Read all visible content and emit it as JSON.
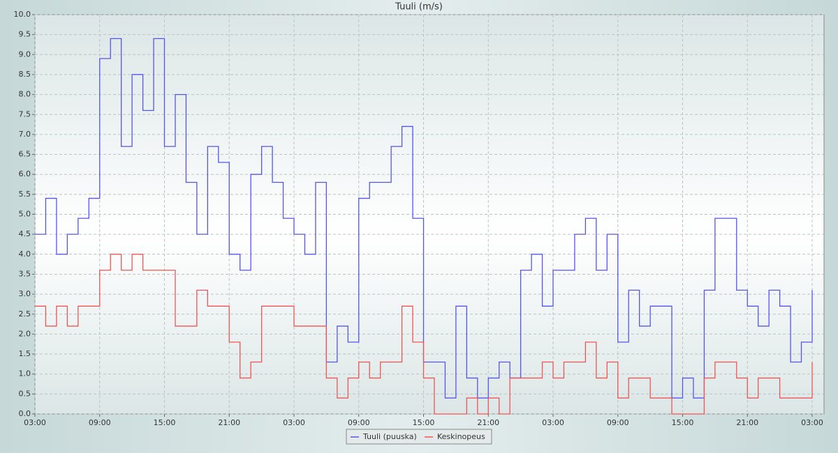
{
  "chart_data": {
    "type": "line",
    "title": "Tuuli (m/s)",
    "step": true,
    "grid": true,
    "legend": "bottom",
    "x": [
      0,
      1,
      2,
      3,
      4,
      5,
      6,
      7,
      8,
      9,
      10,
      11,
      12,
      13,
      14,
      15,
      16,
      17,
      18,
      19,
      20,
      21,
      22,
      23,
      24,
      25,
      26,
      27,
      28,
      29,
      30,
      31,
      32,
      33,
      34,
      35,
      36,
      37,
      38,
      39,
      40,
      41,
      42,
      43,
      44,
      45,
      46,
      47,
      48,
      49,
      50,
      51,
      52,
      53,
      54,
      55,
      56,
      57,
      58,
      59,
      60,
      61,
      62,
      63,
      64,
      65,
      66,
      67,
      68,
      69,
      70,
      71,
      72
    ],
    "series": [
      {
        "name": "Tuuli (puuska)",
        "color": "#5555ee",
        "values": [
          4.5,
          5.4,
          4.0,
          4.5,
          4.9,
          5.4,
          8.9,
          9.4,
          6.7,
          8.5,
          7.6,
          9.4,
          6.7,
          8.0,
          5.8,
          4.5,
          6.7,
          6.3,
          4.0,
          3.6,
          6.0,
          6.7,
          5.8,
          4.9,
          4.5,
          4.0,
          5.8,
          1.3,
          2.2,
          1.8,
          5.4,
          5.8,
          5.8,
          6.7,
          7.2,
          4.9,
          1.3,
          1.3,
          0.4,
          2.7,
          0.9,
          0.4,
          0.9,
          1.3,
          0.9,
          3.6,
          4.0,
          2.7,
          3.6,
          3.6,
          4.5,
          4.9,
          3.6,
          4.5,
          1.8,
          3.1,
          2.2,
          2.7,
          2.7,
          0.4,
          0.9,
          0.4,
          3.1,
          4.9,
          4.9,
          3.1,
          2.7,
          2.2,
          3.1,
          2.7,
          1.3,
          1.8,
          3.1
        ]
      },
      {
        "name": "Keskinopeus",
        "color": "#ee5555",
        "values": [
          2.7,
          2.2,
          2.7,
          2.2,
          2.7,
          2.7,
          3.6,
          4.0,
          3.6,
          4.0,
          3.6,
          3.6,
          3.6,
          2.2,
          2.2,
          3.1,
          2.7,
          2.7,
          1.8,
          0.9,
          1.3,
          2.7,
          2.7,
          2.7,
          2.2,
          2.2,
          2.2,
          0.9,
          0.4,
          0.9,
          1.3,
          0.9,
          1.3,
          1.3,
          2.7,
          1.8,
          0.9,
          0.0,
          0.0,
          0.0,
          0.4,
          0.0,
          0.4,
          0.0,
          0.9,
          0.9,
          0.9,
          1.3,
          0.9,
          1.3,
          1.3,
          1.8,
          0.9,
          1.3,
          0.4,
          0.9,
          0.9,
          0.4,
          0.4,
          0.0,
          0.0,
          0.0,
          0.9,
          1.3,
          1.3,
          0.9,
          0.4,
          0.9,
          0.9,
          0.4,
          0.4,
          0.4,
          1.3
        ]
      }
    ],
    "xlim": [
      0,
      73.1
    ],
    "xticks": [
      {
        "value": 0,
        "label": "03:00"
      },
      {
        "value": 6,
        "label": "09:00"
      },
      {
        "value": 12,
        "label": "15:00"
      },
      {
        "value": 18,
        "label": "21:00"
      },
      {
        "value": 24,
        "label": "03:00"
      },
      {
        "value": 30,
        "label": "09:00"
      },
      {
        "value": 36,
        "label": "15:00"
      },
      {
        "value": 42,
        "label": "21:00"
      },
      {
        "value": 48,
        "label": "03:00"
      },
      {
        "value": 54,
        "label": "09:00"
      },
      {
        "value": 60,
        "label": "15:00"
      },
      {
        "value": 66,
        "label": "21:00"
      },
      {
        "value": 72,
        "label": "03:00"
      }
    ],
    "ylim": [
      0,
      10
    ],
    "yticks": [
      {
        "value": 0,
        "label": "0.0"
      },
      {
        "value": 0.5,
        "label": "0.5"
      },
      {
        "value": 1,
        "label": "1.0"
      },
      {
        "value": 1.5,
        "label": "1.5"
      },
      {
        "value": 2,
        "label": "2.0"
      },
      {
        "value": 2.5,
        "label": "2.5"
      },
      {
        "value": 3,
        "label": "3.0"
      },
      {
        "value": 3.5,
        "label": "3.5"
      },
      {
        "value": 4,
        "label": "4.0"
      },
      {
        "value": 4.5,
        "label": "4.5"
      },
      {
        "value": 5,
        "label": "5.0"
      },
      {
        "value": 5.5,
        "label": "5.5"
      },
      {
        "value": 6,
        "label": "6.0"
      },
      {
        "value": 6.5,
        "label": "6.5"
      },
      {
        "value": 7,
        "label": "7.0"
      },
      {
        "value": 7.5,
        "label": "7.5"
      },
      {
        "value": 8,
        "label": "8.0"
      },
      {
        "value": 8.5,
        "label": "8.5"
      },
      {
        "value": 9,
        "label": "9.0"
      },
      {
        "value": 9.5,
        "label": "9.5"
      },
      {
        "value": 10,
        "label": "10.0"
      }
    ]
  }
}
